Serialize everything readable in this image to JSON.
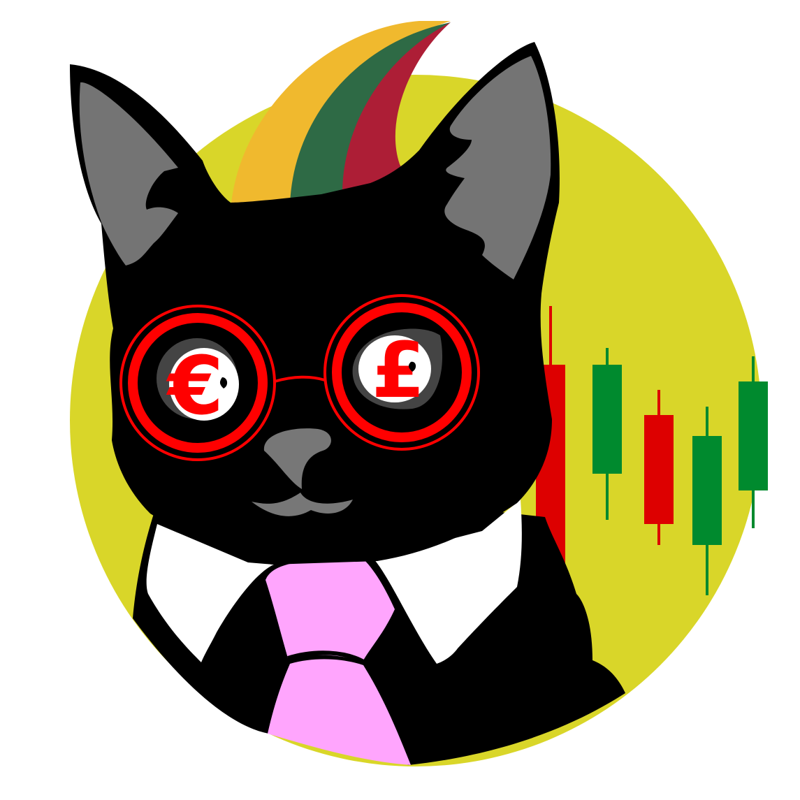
{
  "illustration": {
    "subject": "cat-in-suit",
    "symbols": {
      "left_eye": "€",
      "right_eye": "£"
    }
  },
  "colors": {
    "background": "#ffffff",
    "disc": "#d9d629",
    "fur": "#000000",
    "ear_inner": "#747474",
    "nose": "#777777",
    "glasses": "#ff0000",
    "eye_white": "#ffffff",
    "eye_shadow": "#444444",
    "flag_yellow": "#f0b92e",
    "flag_green": "#2e6a45",
    "flag_red": "#ad1e36",
    "collar": "#ffffff",
    "tie": "#ffa5fd",
    "candle_up": "#008a2e",
    "candle_down": "#dd0000"
  },
  "chart_data": {
    "type": "candlestick",
    "candles": [
      {
        "direction": "down",
        "open": 0.78,
        "close": 0.27,
        "high": 0.92,
        "low": 0.1
      },
      {
        "direction": "up",
        "open": 0.52,
        "close": 0.78,
        "high": 0.82,
        "low": 0.41
      },
      {
        "direction": "down",
        "open": 0.66,
        "close": 0.4,
        "high": 0.72,
        "low": 0.35
      },
      {
        "direction": "up",
        "open": 0.35,
        "close": 0.61,
        "high": 0.68,
        "low": 0.23
      },
      {
        "direction": "up",
        "open": 0.48,
        "close": 0.74,
        "high": 0.8,
        "low": 0.39
      }
    ]
  }
}
